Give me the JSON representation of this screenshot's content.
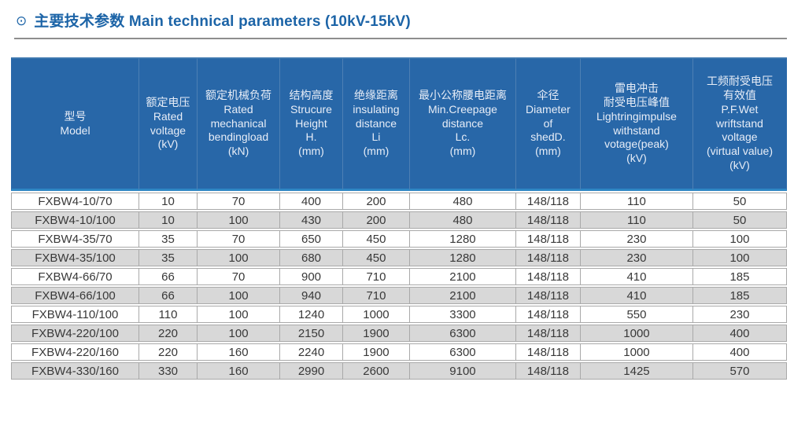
{
  "header": {
    "icon": "⊙",
    "title": "主要技术参数 Main technical parameters (10kV-15kV)"
  },
  "colors": {
    "title_blue": "#1c64a7",
    "table_header_blue": "#2867a8",
    "header_bottom_accent": "#2e86c4",
    "row_stripe_gray": "#d8d8d8",
    "cell_border_gray": "#a9a9a9",
    "divider_gray": "#8e8e8e"
  },
  "table": {
    "columns": [
      {
        "id": "model",
        "lines": [
          "型号",
          "Model"
        ]
      },
      {
        "id": "rated-voltage",
        "lines": [
          "额定电压",
          "Rated",
          "voltage",
          "(kV)"
        ]
      },
      {
        "id": "rated-mech-load",
        "lines": [
          "额定机械负荷",
          "Rated",
          "mechanical",
          "bendingload",
          "(kN)"
        ]
      },
      {
        "id": "structure-height",
        "lines": [
          "结构高度",
          "Strucure",
          "Height",
          "H.",
          "(mm)"
        ]
      },
      {
        "id": "insulating-dist",
        "lines": [
          "绝缘距离",
          "insulating",
          "distance",
          "Li",
          "(mm)"
        ]
      },
      {
        "id": "creepage-dist",
        "lines": [
          "最小公称腰电距离",
          "Min.Creepage",
          "distance",
          "Lc.",
          "(mm)"
        ]
      },
      {
        "id": "shed-diameter",
        "lines": [
          "伞径",
          "Diameter",
          "of",
          "shedD.",
          "(mm)"
        ]
      },
      {
        "id": "lightning-impulse",
        "lines": [
          "雷电冲击",
          "耐受电压峰值",
          "Lightringimpulse",
          "withstand",
          "votage(peak)",
          "(kV)"
        ]
      },
      {
        "id": "pf-wet-withstand",
        "lines": [
          "工频耐受电压",
          "有效值",
          "P.F.Wet",
          "wriftstand",
          "voltage",
          "(virtual value)",
          "(kV)"
        ]
      }
    ],
    "column_widths_pct": [
      16.43,
      7.51,
      10.65,
      8.11,
      8.62,
      13.69,
      8.32,
      14.5,
      12.17
    ],
    "rows": [
      [
        "FXBW4-10/70",
        "10",
        "70",
        "400",
        "200",
        "480",
        "148/118",
        "110",
        "50"
      ],
      [
        "FXBW4-10/100",
        "10",
        "100",
        "430",
        "200",
        "480",
        "148/118",
        "110",
        "50"
      ],
      [
        "FXBW4-35/70",
        "35",
        "70",
        "650",
        "450",
        "1280",
        "148/118",
        "230",
        "100"
      ],
      [
        "FXBW4-35/100",
        "35",
        "100",
        "680",
        "450",
        "1280",
        "148/118",
        "230",
        "100"
      ],
      [
        "FXBW4-66/70",
        "66",
        "70",
        "900",
        "710",
        "2100",
        "148/118",
        "410",
        "185"
      ],
      [
        "FXBW4-66/100",
        "66",
        "100",
        "940",
        "710",
        "2100",
        "148/118",
        "410",
        "185"
      ],
      [
        "FXBW4-110/100",
        "110",
        "100",
        "1240",
        "1000",
        "3300",
        "148/118",
        "550",
        "230"
      ],
      [
        "FXBW4-220/100",
        "220",
        "100",
        "2150",
        "1900",
        "6300",
        "148/118",
        "1000",
        "400"
      ],
      [
        "FXBW4-220/160",
        "220",
        "160",
        "2240",
        "1900",
        "6300",
        "148/118",
        "1000",
        "400"
      ],
      [
        "FXBW4-330/160",
        "330",
        "160",
        "2990",
        "2600",
        "9100",
        "148/118",
        "1425",
        "570"
      ]
    ]
  }
}
